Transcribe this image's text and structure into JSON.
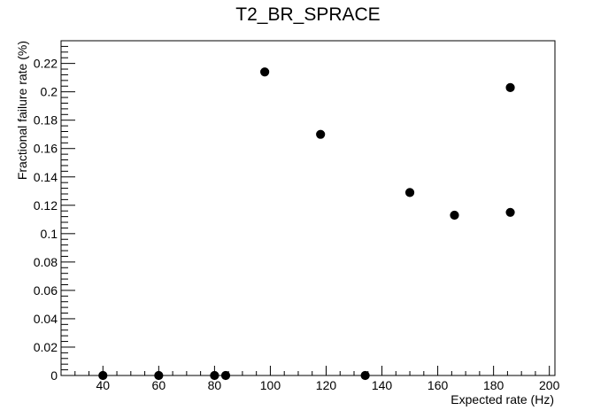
{
  "chart_data": {
    "type": "scatter",
    "title": "T2_BR_SPRACE",
    "xlabel": "Expected rate (Hz)",
    "ylabel": "Fractional failure rate (%)",
    "xlim": [
      25,
      202
    ],
    "ylim": [
      0,
      0.236
    ],
    "x_ticks": [
      40,
      60,
      80,
      100,
      120,
      140,
      160,
      180,
      200
    ],
    "x_tick_labels": [
      "40",
      "60",
      "80",
      "100",
      "120",
      "140",
      "160",
      "180",
      "200"
    ],
    "y_ticks": [
      0,
      0.02,
      0.04,
      0.06,
      0.08,
      0.1,
      0.12,
      0.14,
      0.16,
      0.18,
      0.2,
      0.22
    ],
    "y_tick_labels": [
      "0",
      "0.02",
      "0.04",
      "0.06",
      "0.08",
      "0.1",
      "0.12",
      "0.14",
      "0.16",
      "0.18",
      "0.2",
      "0.22"
    ],
    "grid": false,
    "marker_color": "#000000",
    "series": [
      {
        "points": [
          {
            "x": 40,
            "y": 0
          },
          {
            "x": 60,
            "y": 0
          },
          {
            "x": 80,
            "y": 0
          },
          {
            "x": 84,
            "y": 0
          },
          {
            "x": 98,
            "y": 0.214
          },
          {
            "x": 118,
            "y": 0.17
          },
          {
            "x": 134,
            "y": 0
          },
          {
            "x": 150,
            "y": 0.129
          },
          {
            "x": 166,
            "y": 0.113
          },
          {
            "x": 186,
            "y": 0.203
          },
          {
            "x": 186,
            "y": 0.115
          }
        ]
      }
    ]
  }
}
